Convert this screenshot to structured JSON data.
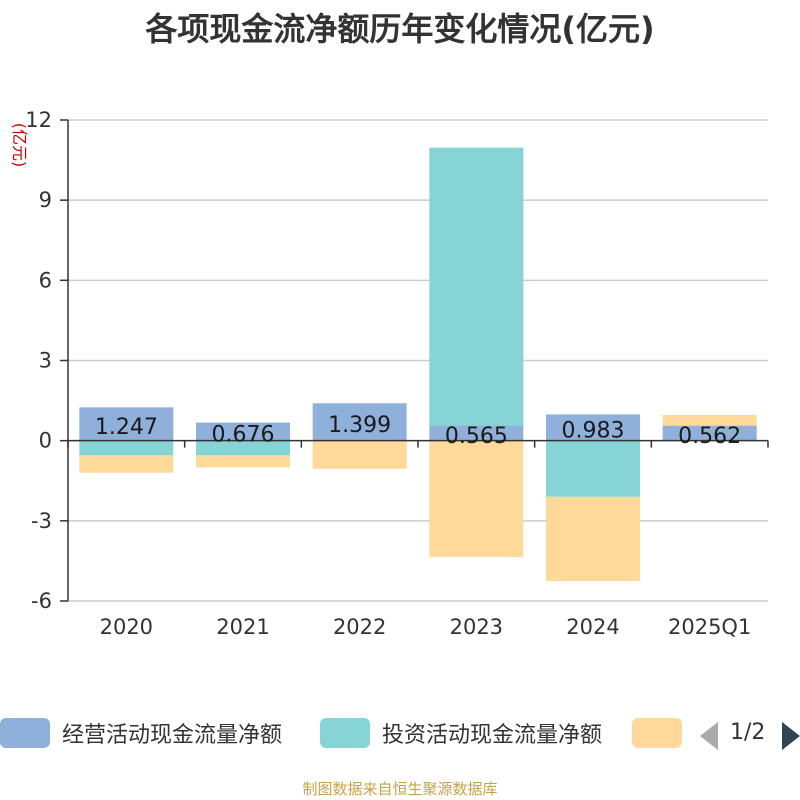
{
  "chart_data": {
    "type": "bar",
    "stacked": true,
    "title": "各项现金流净额历年变化情况(亿元)",
    "ylabel": "(亿元)",
    "xlabel": "",
    "categories": [
      "2020",
      "2021",
      "2022",
      "2023",
      "2024",
      "2025Q1"
    ],
    "ylim": [
      -6,
      12
    ],
    "yticks": [
      12,
      9,
      6,
      3,
      0,
      -3,
      -6
    ],
    "grid": true,
    "series": [
      {
        "name": "经营活动现金流量净额",
        "color": "#8eb0db",
        "values": [
          1.247,
          0.676,
          1.399,
          0.565,
          0.983,
          0.562
        ],
        "labels": [
          "1.247",
          "0.676",
          "1.399",
          "0.565",
          "0.983",
          "0.562"
        ]
      },
      {
        "name": "投资活动现金流量净额",
        "color": "#86d4d6",
        "values": [
          -0.55,
          -0.55,
          0,
          10.4,
          -2.1,
          0
        ],
        "labels": []
      },
      {
        "name": "",
        "color": "#fed999",
        "values": [
          -0.65,
          -0.45,
          -1.05,
          -4.35,
          -3.15,
          0.4
        ],
        "labels": []
      }
    ],
    "legend": {
      "position": "bottom",
      "page": "1/2"
    }
  },
  "footer": "制图数据来自恒生聚源数据库"
}
